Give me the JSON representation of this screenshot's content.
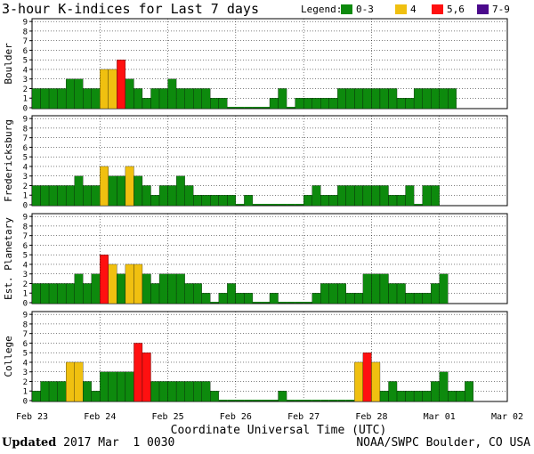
{
  "chart_data": {
    "type": "bar",
    "title": "3-hour K-indices for Last 7 days",
    "legend": {
      "label": "Legend:",
      "position": "top-right",
      "entries": [
        {
          "label": "0-3",
          "color": "#0d8a0d"
        },
        {
          "label": "4",
          "color": "#f0c010"
        },
        {
          "label": "5,6",
          "color": "#ff1010"
        },
        {
          "label": "7-9",
          "color": "#4b0a8c"
        }
      ]
    },
    "xlabel": "Coordinate Universal Time (UTC)",
    "ylim": [
      0,
      9
    ],
    "yticks": [
      "0",
      "1",
      "2",
      "3",
      "4",
      "5",
      "6",
      "7",
      "8",
      "9"
    ],
    "xticks": [
      "Feb 23",
      "Feb 24",
      "Feb 25",
      "Feb 26",
      "Feb 27",
      "Feb 28",
      "Mar 01",
      "Mar 02"
    ],
    "interval": "3-hour",
    "grid": "horizontal dotted",
    "panels": [
      {
        "name": "Boulder",
        "values": [
          2,
          2,
          2,
          2,
          3,
          3,
          2,
          2,
          4,
          4,
          5,
          3,
          2,
          1,
          2,
          2,
          3,
          2,
          2,
          2,
          2,
          1,
          1,
          0,
          0,
          0,
          0,
          0,
          1,
          2,
          0,
          1,
          1,
          1,
          1,
          1,
          2,
          2,
          2,
          2,
          2,
          2,
          2,
          1,
          1,
          2,
          2,
          2,
          2,
          2
        ]
      },
      {
        "name": "Fredericksburg",
        "values": [
          2,
          2,
          2,
          2,
          2,
          3,
          2,
          2,
          4,
          3,
          3,
          4,
          3,
          2,
          1,
          2,
          2,
          3,
          2,
          1,
          1,
          1,
          1,
          1,
          0,
          1,
          0,
          0,
          0,
          0,
          0,
          0,
          1,
          2,
          1,
          1,
          2,
          2,
          2,
          2,
          2,
          2,
          1,
          1,
          2,
          0,
          2,
          2
        ]
      },
      {
        "name": "Est. Planetary",
        "values": [
          2,
          2,
          2,
          2,
          2,
          3,
          2,
          3,
          5,
          4,
          3,
          4,
          4,
          3,
          2,
          3,
          3,
          3,
          2,
          2,
          1,
          0,
          1,
          2,
          1,
          1,
          0,
          0,
          1,
          0,
          0,
          0,
          0,
          1,
          2,
          2,
          2,
          1,
          1,
          3,
          3,
          3,
          2,
          2,
          1,
          1,
          1,
          2,
          3
        ]
      },
      {
        "name": "College",
        "values": [
          1,
          2,
          2,
          2,
          4,
          4,
          2,
          1,
          3,
          3,
          3,
          3,
          6,
          5,
          2,
          2,
          2,
          2,
          2,
          2,
          2,
          1,
          0,
          0,
          0,
          0,
          0,
          0,
          0,
          1,
          0,
          0,
          0,
          0,
          0,
          0,
          0,
          0,
          4,
          5,
          4,
          1,
          2,
          1,
          1,
          1,
          1,
          2,
          3,
          1,
          1,
          2
        ]
      }
    ]
  },
  "footer": {
    "updated_label": "Updated",
    "updated_time": "2017 Mar  1 0030",
    "source": "NOAA/SWPC Boulder, CO USA"
  }
}
